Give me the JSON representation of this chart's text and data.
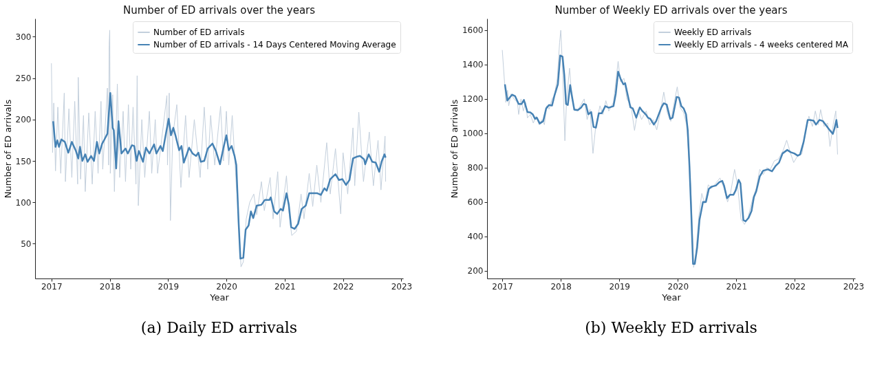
{
  "chart_data": [
    {
      "type": "line",
      "title": "Number of ED arrivals over the years",
      "xlabel": "Year",
      "ylabel": "Number of ED arrivals",
      "xlim": [
        2016.72,
        2023.03
      ],
      "xticks": [
        2017,
        2018,
        2019,
        2020,
        2021,
        2022,
        2023
      ],
      "ylim": [
        8,
        322
      ],
      "yticks": [
        50,
        100,
        150,
        200,
        250,
        300
      ],
      "grid": false,
      "legend": "top right",
      "line_style": "solid",
      "annotations": [
        "(a) Daily ED arrivals"
      ],
      "series": [
        {
          "name": "Number of ED arrivals",
          "color": "#c3cfdc",
          "x": [
            2017.0,
            2017.02,
            2017.04,
            2017.07,
            2017.11,
            2017.16,
            2017.22,
            2017.24,
            2017.3,
            2017.35,
            2017.4,
            2017.45,
            2017.46,
            2017.5,
            2017.55,
            2017.58,
            2017.64,
            2017.7,
            2017.75,
            2017.8,
            2017.85,
            2017.88,
            2017.96,
            2017.98,
            2017.99,
            2018.0,
            2018.01,
            2018.05,
            2018.08,
            2018.13,
            2018.17,
            2018.23,
            2018.27,
            2018.32,
            2018.36,
            2018.4,
            2018.45,
            2018.47,
            2018.49,
            2018.55,
            2018.6,
            2018.68,
            2018.72,
            2018.78,
            2018.82,
            2018.98,
            2018.99,
            2019.02,
            2019.04,
            2019.08,
            2019.15,
            2019.22,
            2019.3,
            2019.36,
            2019.45,
            2019.55,
            2019.62,
            2019.68,
            2019.73,
            2019.8,
            2019.9,
            2019.95,
            2020.0,
            2020.04,
            2020.1,
            2020.17,
            2020.2,
            2020.25,
            2020.29,
            2020.34,
            2020.4,
            2020.47,
            2020.52,
            2020.6,
            2020.65,
            2020.75,
            2020.8,
            2020.88,
            2020.92,
            2021.03,
            2021.07,
            2021.12,
            2021.2,
            2021.28,
            2021.33,
            2021.42,
            2021.48,
            2021.55,
            2021.62,
            2021.72,
            2021.78,
            2021.87,
            2021.96,
            2022.0,
            2022.08,
            2022.17,
            2022.2,
            2022.27,
            2022.35,
            2022.45,
            2022.52,
            2022.6,
            2022.65,
            2022.72,
            2022.73
          ],
          "values": [
            268,
            160,
            220,
            138,
            215,
            135,
            232,
            125,
            213,
            130,
            222,
            122,
            251,
            128,
            205,
            113,
            208,
            122,
            210,
            135,
            222,
            140,
            238,
            145,
            290,
            308,
            135,
            230,
            113,
            243,
            130,
            210,
            125,
            218,
            140,
            215,
            122,
            253,
            96,
            200,
            130,
            210,
            135,
            200,
            135,
            229,
            145,
            232,
            78,
            180,
            218,
            118,
            205,
            130,
            200,
            130,
            215,
            140,
            205,
            145,
            216,
            150,
            210,
            145,
            205,
            120,
            95,
            22,
            28,
            80,
            100,
            110,
            85,
            125,
            90,
            130,
            80,
            137,
            70,
            132,
            90,
            60,
            65,
            110,
            80,
            135,
            95,
            145,
            100,
            172,
            110,
            165,
            86,
            160,
            110,
            190,
            120,
            209,
            125,
            185,
            120,
            175,
            115,
            180,
            125
          ]
        },
        {
          "name": "Number of ED arrivals - 14 Days Centered Moving Average",
          "color": "#4682b4",
          "x": [
            2017.03,
            2017.07,
            2017.1,
            2017.13,
            2017.17,
            2017.23,
            2017.29,
            2017.35,
            2017.42,
            2017.46,
            2017.49,
            2017.53,
            2017.58,
            2017.62,
            2017.68,
            2017.73,
            2017.78,
            2017.82,
            2017.87,
            2017.91,
            2017.96,
            2018.01,
            2018.05,
            2018.07,
            2018.11,
            2018.15,
            2018.2,
            2018.27,
            2018.31,
            2018.38,
            2018.42,
            2018.46,
            2018.5,
            2018.57,
            2018.62,
            2018.68,
            2018.76,
            2018.8,
            2018.87,
            2018.91,
            2018.95,
            2019.01,
            2019.05,
            2019.09,
            2019.13,
            2019.19,
            2019.23,
            2019.27,
            2019.36,
            2019.42,
            2019.48,
            2019.52,
            2019.56,
            2019.62,
            2019.68,
            2019.76,
            2019.82,
            2019.89,
            2019.95,
            2020.0,
            2020.04,
            2020.09,
            2020.14,
            2020.17,
            2020.21,
            2020.24,
            2020.29,
            2020.33,
            2020.38,
            2020.42,
            2020.46,
            2020.52,
            2020.6,
            2020.66,
            2020.74,
            2020.76,
            2020.82,
            2020.87,
            2020.93,
            2020.97,
            2021.03,
            2021.07,
            2021.11,
            2021.17,
            2021.23,
            2021.29,
            2021.36,
            2021.42,
            2021.5,
            2021.56,
            2021.62,
            2021.68,
            2021.72,
            2021.78,
            2021.87,
            2021.93,
            2021.99,
            2022.05,
            2022.11,
            2022.17,
            2022.23,
            2022.29,
            2022.36,
            2022.38,
            2022.44,
            2022.5,
            2022.56,
            2022.62,
            2022.66,
            2022.71,
            2022.73
          ],
          "values": [
            198,
            167,
            175,
            167,
            176,
            173,
            160,
            173,
            162,
            153,
            167,
            150,
            158,
            149,
            156,
            150,
            173,
            159,
            171,
            176,
            183,
            232,
            190,
            187,
            141,
            198,
            159,
            165,
            159,
            169,
            168,
            150,
            162,
            149,
            166,
            159,
            170,
            159,
            168,
            162,
            178,
            201,
            181,
            190,
            180,
            163,
            168,
            148,
            166,
            159,
            156,
            160,
            149,
            150,
            165,
            171,
            162,
            146,
            166,
            181,
            163,
            168,
            156,
            145,
            75,
            32,
            33,
            67,
            72,
            89,
            81,
            96,
            97,
            103,
            103,
            106,
            89,
            86,
            92,
            90,
            111,
            97,
            70,
            68,
            74,
            92,
            96,
            111,
            111,
            111,
            109,
            117,
            114,
            128,
            134,
            127,
            128,
            121,
            127,
            153,
            155,
            156,
            152,
            146,
            158,
            149,
            148,
            137,
            149,
            158,
            154
          ]
        }
      ]
    },
    {
      "type": "line",
      "title": "Number of Weekly ED arrivals over the years",
      "xlabel": "Year",
      "ylabel": "Number of ED arrivals",
      "xlim": [
        2016.74,
        2023.03
      ],
      "xticks": [
        2017,
        2018,
        2019,
        2020,
        2021,
        2022,
        2023
      ],
      "ylim": [
        155,
        1668
      ],
      "yticks": [
        200,
        400,
        600,
        800,
        1000,
        1200,
        1400,
        1600
      ],
      "grid": false,
      "legend": "top right",
      "line_style": "solid",
      "annotations": [
        "(b) Weekly ED arrivals"
      ],
      "series": [
        {
          "name": "Weekly ED arrivals",
          "color": "#c3cfdc",
          "x": [
            2017.0,
            2017.04,
            2017.06,
            2017.09,
            2017.11,
            2017.15,
            2017.2,
            2017.26,
            2017.28,
            2017.32,
            2017.36,
            2017.4,
            2017.43,
            2017.48,
            2017.53,
            2017.58,
            2017.63,
            2017.68,
            2017.72,
            2017.76,
            2017.8,
            2017.85,
            2017.89,
            2017.94,
            2017.98,
            2018.0,
            2018.03,
            2018.07,
            2018.1,
            2018.15,
            2018.19,
            2018.24,
            2018.3,
            2018.35,
            2018.4,
            2018.45,
            2018.5,
            2018.55,
            2018.6,
            2018.67,
            2018.72,
            2018.77,
            2018.82,
            2018.9,
            2018.98,
            2019.02,
            2019.08,
            2019.13,
            2019.2,
            2019.26,
            2019.32,
            2019.38,
            2019.46,
            2019.52,
            2019.58,
            2019.64,
            2019.7,
            2019.76,
            2019.82,
            2019.88,
            2019.95,
            2019.99,
            2020.04,
            2020.1,
            2020.15,
            2020.22,
            2020.27,
            2020.3,
            2020.36,
            2020.41,
            2020.46,
            2020.52,
            2020.58,
            2020.65,
            2020.72,
            2020.79,
            2020.85,
            2020.9,
            2020.97,
            2021.02,
            2021.08,
            2021.14,
            2021.2,
            2021.28,
            2021.34,
            2021.4,
            2021.46,
            2021.52,
            2021.58,
            2021.65,
            2021.72,
            2021.8,
            2021.86,
            2021.93,
            2021.98,
            2022.05,
            2022.12,
            2022.18,
            2022.24,
            2022.3,
            2022.35,
            2022.4,
            2022.44,
            2022.5,
            2022.56,
            2022.6,
            2022.66,
            2022.7,
            2022.73
          ],
          "values": [
            1485,
            1290,
            1180,
            1250,
            1160,
            1230,
            1200,
            1180,
            1110,
            1200,
            1130,
            1180,
            1090,
            1110,
            1060,
            1100,
            1050,
            1080,
            1050,
            1160,
            1140,
            1200,
            1220,
            1320,
            1530,
            1600,
            1380,
            957,
            1200,
            1379,
            1200,
            1140,
            1140,
            1170,
            1200,
            1080,
            1140,
            883,
            1050,
            1160,
            1110,
            1190,
            1130,
            1180,
            1419,
            1300,
            1320,
            1200,
            1160,
            1017,
            1140,
            1080,
            1130,
            1050,
            1080,
            1020,
            1120,
            1240,
            1120,
            1070,
            1200,
            1270,
            1150,
            1120,
            1050,
            700,
            220,
            270,
            520,
            650,
            590,
            700,
            680,
            710,
            740,
            680,
            600,
            650,
            790,
            700,
            500,
            470,
            510,
            620,
            680,
            790,
            760,
            800,
            790,
            840,
            850,
            900,
            960,
            880,
            830,
            870,
            880,
            1000,
            1100,
            1040,
            1130,
            1050,
            1138,
            1040,
            1060,
            923,
            1060,
            1130,
            877
          ]
        },
        {
          "name": "Weekly ED arrivals - 4 weeks centered MA",
          "color": "#4682b4",
          "x": [
            2017.045,
            2017.086,
            2017.126,
            2017.167,
            2017.22,
            2017.28,
            2017.33,
            2017.37,
            2017.43,
            2017.48,
            2017.52,
            2017.56,
            2017.59,
            2017.64,
            2017.7,
            2017.75,
            2017.8,
            2017.85,
            2017.89,
            2017.95,
            2017.99,
            2018.03,
            2018.06,
            2018.09,
            2018.12,
            2018.16,
            2018.19,
            2018.23,
            2018.29,
            2018.35,
            2018.39,
            2018.43,
            2018.47,
            2018.52,
            2018.56,
            2018.6,
            2018.65,
            2018.7,
            2018.76,
            2018.82,
            2018.9,
            2018.94,
            2018.98,
            2019.02,
            2019.07,
            2019.1,
            2019.13,
            2019.19,
            2019.23,
            2019.29,
            2019.35,
            2019.39,
            2019.45,
            2019.49,
            2019.53,
            2019.59,
            2019.63,
            2019.72,
            2019.76,
            2019.81,
            2019.87,
            2019.91,
            2019.98,
            2020.02,
            2020.06,
            2020.1,
            2020.14,
            2020.17,
            2020.2,
            2020.23,
            2020.26,
            2020.29,
            2020.33,
            2020.37,
            2020.43,
            2020.48,
            2020.53,
            2020.58,
            2020.65,
            2020.71,
            2020.76,
            2020.79,
            2020.84,
            2020.89,
            2020.95,
            2020.99,
            2021.04,
            2021.07,
            2021.12,
            2021.16,
            2021.21,
            2021.26,
            2021.3,
            2021.34,
            2021.4,
            2021.46,
            2021.54,
            2021.61,
            2021.67,
            2021.73,
            2021.79,
            2021.87,
            2021.93,
            2021.99,
            2022.05,
            2022.09,
            2022.15,
            2022.22,
            2022.26,
            2022.32,
            2022.36,
            2022.42,
            2022.48,
            2022.54,
            2022.6,
            2022.65,
            2022.68,
            2022.71,
            2022.73
          ],
          "values": [
            1285,
            1191,
            1208,
            1225,
            1216,
            1171,
            1171,
            1194,
            1124,
            1122,
            1111,
            1084,
            1091,
            1057,
            1071,
            1145,
            1165,
            1162,
            1218,
            1285,
            1453,
            1446,
            1339,
            1171,
            1165,
            1281,
            1218,
            1138,
            1135,
            1151,
            1171,
            1167,
            1111,
            1124,
            1037,
            1033,
            1117,
            1117,
            1158,
            1149,
            1158,
            1232,
            1359,
            1319,
            1285,
            1292,
            1245,
            1151,
            1145,
            1091,
            1151,
            1131,
            1111,
            1091,
            1084,
            1051,
            1071,
            1151,
            1175,
            1167,
            1084,
            1091,
            1212,
            1208,
            1158,
            1145,
            1111,
            1017,
            803,
            535,
            240,
            240,
            334,
            495,
            600,
            600,
            676,
            690,
            696,
            716,
            723,
            696,
            622,
            642,
            642,
            669,
            729,
            709,
            495,
            488,
            508,
            548,
            629,
            662,
            749,
            783,
            790,
            779,
            810,
            830,
            883,
            903,
            890,
            883,
            870,
            877,
            950,
            1078,
            1078,
            1074,
            1051,
            1078,
            1071,
            1044,
            1017,
            997,
            1031,
            1078,
            1031
          ]
        }
      ]
    }
  ]
}
